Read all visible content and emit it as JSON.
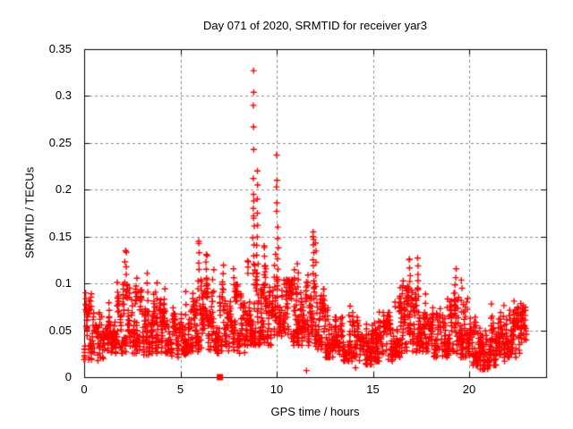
{
  "chart_data": {
    "type": "scatter",
    "title": "Day 071 of 2020, SRMTID for receiver yar3",
    "xlabel": "GPS time / hours",
    "ylabel": "SRMTID / TECUs",
    "xlim": [
      0,
      24
    ],
    "ylim": [
      0,
      0.35
    ],
    "xticks": {
      "values": [
        0,
        5,
        10,
        15,
        20
      ],
      "labels": [
        "0",
        "5",
        "10",
        "15",
        "20"
      ]
    },
    "yticks": {
      "values": [
        0,
        0.05,
        0.1,
        0.15,
        0.2,
        0.25,
        0.3,
        0.35
      ],
      "labels": [
        "0",
        "0.05",
        "0.1",
        "0.15",
        "0.2",
        "0.25",
        "0.3",
        "0.35"
      ]
    },
    "grid": {
      "show": true,
      "style": "dashed",
      "color": "#8c8c8c"
    },
    "background": "#ffffff",
    "border_color": "#000000",
    "legend": "none",
    "series": [
      {
        "name": "srmtid-scatter",
        "marker": "plus",
        "color": "#ff0000",
        "point_cloud": {
          "seed": 20200071,
          "envelope_bins": [
            [
              0.0,
              0.5,
              0.022,
              0.085,
              55
            ],
            [
              0.5,
              1.0,
              0.02,
              0.065,
              50
            ],
            [
              1.0,
              1.5,
              0.028,
              0.07,
              50
            ],
            [
              1.5,
              2.0,
              0.03,
              0.085,
              55
            ],
            [
              2.0,
              2.5,
              0.032,
              0.095,
              55
            ],
            [
              2.5,
              3.0,
              0.03,
              0.09,
              55
            ],
            [
              3.0,
              3.5,
              0.028,
              0.08,
              50
            ],
            [
              3.5,
              4.0,
              0.03,
              0.085,
              55
            ],
            [
              4.0,
              4.5,
              0.03,
              0.08,
              50
            ],
            [
              4.5,
              5.0,
              0.025,
              0.07,
              50
            ],
            [
              5.0,
              5.5,
              0.028,
              0.075,
              50
            ],
            [
              5.5,
              6.0,
              0.032,
              0.095,
              55
            ],
            [
              6.0,
              6.5,
              0.035,
              0.1,
              55
            ],
            [
              6.5,
              7.0,
              0.03,
              0.09,
              50
            ],
            [
              7.0,
              7.5,
              0.033,
              0.095,
              55
            ],
            [
              7.5,
              8.0,
              0.033,
              0.095,
              55
            ],
            [
              8.0,
              8.5,
              0.03,
              0.085,
              50
            ],
            [
              8.5,
              9.0,
              0.04,
              0.12,
              60
            ],
            [
              9.0,
              9.5,
              0.04,
              0.115,
              60
            ],
            [
              9.5,
              10.0,
              0.04,
              0.105,
              55
            ],
            [
              10.0,
              10.5,
              0.045,
              0.115,
              62
            ],
            [
              10.5,
              11.0,
              0.04,
              0.1,
              58
            ],
            [
              11.0,
              11.5,
              0.04,
              0.1,
              58
            ],
            [
              11.5,
              12.0,
              0.04,
              0.105,
              58
            ],
            [
              12.0,
              12.5,
              0.035,
              0.09,
              55
            ],
            [
              12.5,
              13.0,
              0.025,
              0.07,
              50
            ],
            [
              13.0,
              13.5,
              0.02,
              0.06,
              50
            ],
            [
              13.5,
              14.0,
              0.02,
              0.065,
              50
            ],
            [
              14.0,
              14.5,
              0.02,
              0.06,
              50
            ],
            [
              14.5,
              15.0,
              0.016,
              0.055,
              50
            ],
            [
              15.0,
              15.5,
              0.02,
              0.06,
              50
            ],
            [
              15.5,
              16.0,
              0.02,
              0.065,
              50
            ],
            [
              16.0,
              16.5,
              0.025,
              0.08,
              52
            ],
            [
              16.5,
              17.0,
              0.03,
              0.1,
              58
            ],
            [
              17.0,
              17.5,
              0.03,
              0.1,
              58
            ],
            [
              17.5,
              18.0,
              0.03,
              0.08,
              52
            ],
            [
              18.0,
              18.5,
              0.025,
              0.07,
              50
            ],
            [
              18.5,
              19.0,
              0.025,
              0.075,
              50
            ],
            [
              19.0,
              19.5,
              0.03,
              0.09,
              52
            ],
            [
              19.5,
              20.0,
              0.025,
              0.08,
              52
            ],
            [
              20.0,
              20.5,
              0.015,
              0.06,
              50
            ],
            [
              20.5,
              21.0,
              0.01,
              0.055,
              50
            ],
            [
              21.0,
              21.5,
              0.015,
              0.06,
              50
            ],
            [
              21.5,
              22.0,
              0.02,
              0.065,
              50
            ],
            [
              22.0,
              22.5,
              0.025,
              0.07,
              50
            ],
            [
              22.5,
              23.0,
              0.03,
              0.075,
              50
            ]
          ],
          "spike_columns": [
            [
              0.1,
              0.07,
              0.09,
              4
            ],
            [
              1.3,
              0.062,
              0.08,
              3
            ],
            [
              1.7,
              0.075,
              0.1,
              4
            ],
            [
              2.15,
              0.085,
              0.132,
              7
            ],
            [
              2.7,
              0.08,
              0.105,
              5
            ],
            [
              3.3,
              0.072,
              0.11,
              5
            ],
            [
              3.75,
              0.075,
              0.1,
              4
            ],
            [
              4.2,
              0.07,
              0.095,
              3
            ],
            [
              5.3,
              0.068,
              0.09,
              3
            ],
            [
              5.95,
              0.085,
              0.142,
              7
            ],
            [
              6.35,
              0.09,
              0.13,
              6
            ],
            [
              6.7,
              0.08,
              0.115,
              4
            ],
            [
              7.2,
              0.085,
              0.118,
              5
            ],
            [
              7.8,
              0.085,
              0.115,
              5
            ],
            [
              8.8,
              0.1,
              0.17,
              8
            ],
            [
              9.0,
              0.1,
              0.15,
              6
            ],
            [
              9.35,
              0.1,
              0.138,
              5
            ],
            [
              9.9,
              0.095,
              0.13,
              4
            ],
            [
              10.05,
              0.105,
              0.16,
              6
            ],
            [
              10.9,
              0.09,
              0.115,
              4
            ],
            [
              11.1,
              0.09,
              0.12,
              5
            ],
            [
              11.9,
              0.095,
              0.15,
              8
            ],
            [
              12.05,
              0.085,
              0.135,
              5
            ],
            [
              13.8,
              0.058,
              0.075,
              3
            ],
            [
              15.3,
              0.052,
              0.07,
              3
            ],
            [
              16.4,
              0.07,
              0.095,
              4
            ],
            [
              16.9,
              0.085,
              0.125,
              6
            ],
            [
              17.35,
              0.085,
              0.128,
              6
            ],
            [
              17.7,
              0.07,
              0.09,
              3
            ],
            [
              18.9,
              0.065,
              0.085,
              3
            ],
            [
              19.3,
              0.08,
              0.115,
              5
            ],
            [
              19.6,
              0.07,
              0.105,
              4
            ],
            [
              21.2,
              0.052,
              0.078,
              3
            ],
            [
              21.8,
              0.055,
              0.075,
              3
            ],
            [
              22.3,
              0.058,
              0.08,
              3
            ],
            [
              22.7,
              0.06,
              0.08,
              3
            ]
          ],
          "outlier_points": [
            [
              8.8,
              0.327
            ],
            [
              8.81,
              0.304
            ],
            [
              8.79,
              0.29
            ],
            [
              8.8,
              0.267
            ],
            [
              8.81,
              0.243
            ],
            [
              8.79,
              0.212
            ],
            [
              8.8,
              0.195
            ],
            [
              8.81,
              0.188
            ],
            [
              8.79,
              0.18
            ],
            [
              8.8,
              0.172
            ],
            [
              9.0,
              0.22
            ],
            [
              9.01,
              0.205
            ],
            [
              8.99,
              0.19
            ],
            [
              9.0,
              0.175
            ],
            [
              9.01,
              0.162
            ],
            [
              10.0,
              0.237
            ],
            [
              10.02,
              0.21
            ],
            [
              9.99,
              0.203
            ],
            [
              10.01,
              0.186
            ],
            [
              10.0,
              0.177
            ],
            [
              11.9,
              0.155
            ],
            [
              11.92,
              0.147
            ],
            [
              12.02,
              0.143
            ],
            [
              9.35,
              0.14
            ],
            [
              5.95,
              0.145
            ],
            [
              2.15,
              0.135
            ],
            [
              6.35,
              0.131
            ],
            [
              16.9,
              0.126
            ],
            [
              14.1,
              0.01
            ],
            [
              20.7,
              0.008
            ],
            [
              21.0,
              0.012
            ],
            [
              11.55,
              0.007
            ]
          ]
        }
      },
      {
        "name": "flag-marker",
        "marker": "filled-square",
        "color": "#ff0000",
        "points": [
          [
            7.05,
            0
          ]
        ]
      }
    ]
  }
}
